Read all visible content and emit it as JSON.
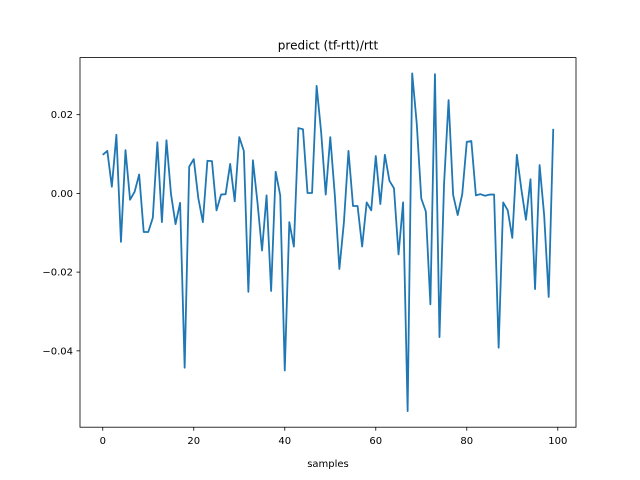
{
  "chart_data": {
    "type": "line",
    "title": "predict (tf-rtt)/rtt",
    "xlabel": "samples",
    "ylabel": "",
    "xlim": [
      -5,
      104
    ],
    "ylim": [
      -0.0594,
      0.0345
    ],
    "xticks": [
      0,
      20,
      40,
      60,
      80,
      100
    ],
    "yticks": [
      -0.04,
      -0.02,
      0.0,
      0.02
    ],
    "ytick_labels": [
      "−0.04",
      "−0.02",
      "0.00",
      "0.02"
    ],
    "grid": false,
    "color": "#1f77b4",
    "series": [
      {
        "x": [
          0,
          1,
          2,
          3,
          4,
          5,
          6,
          7,
          8,
          9,
          10,
          11,
          12,
          13,
          14,
          15,
          16,
          17,
          18,
          19,
          20,
          21,
          22,
          23,
          24,
          25,
          26,
          27,
          28,
          29,
          30,
          31,
          32,
          33,
          34,
          35,
          36,
          37,
          38,
          39,
          40,
          41,
          42,
          43,
          44,
          45,
          46,
          47,
          48,
          49,
          50,
          51,
          52,
          53,
          54,
          55,
          56,
          57,
          58,
          59,
          60,
          61,
          62,
          63,
          64,
          65,
          66,
          67,
          68,
          69,
          70,
          71,
          72,
          73,
          74,
          75,
          76,
          77,
          78,
          79,
          80,
          81,
          82,
          83,
          84,
          85,
          86,
          87,
          88,
          89,
          90,
          91,
          92,
          93,
          94,
          95,
          96,
          97,
          98,
          99
        ],
        "y": [
          0.0098,
          0.0108,
          0.0017,
          0.0149,
          -0.0123,
          0.011,
          -0.0016,
          0.0004,
          0.0048,
          -0.0098,
          -0.0098,
          -0.0062,
          0.013,
          -0.0073,
          0.0135,
          -0.0002,
          -0.0078,
          -0.0024,
          -0.0443,
          0.0068,
          0.0087,
          -0.0012,
          -0.0073,
          0.0083,
          0.0082,
          -0.0043,
          -0.0003,
          -0.0002,
          0.0075,
          -0.002,
          0.0143,
          0.0108,
          -0.025,
          0.0084,
          -0.0023,
          -0.0145,
          -0.0005,
          -0.0248,
          0.0055,
          -0.0005,
          -0.045,
          -0.0073,
          -0.0135,
          0.0166,
          0.0163,
          0.0001,
          0.0001,
          0.0273,
          0.0155,
          -0.0003,
          0.0143,
          -0.0005,
          -0.0192,
          -0.0073,
          0.0108,
          -0.0032,
          -0.0032,
          -0.0135,
          -0.0023,
          -0.0043,
          0.0095,
          -0.0027,
          0.0098,
          0.0032,
          0.0013,
          -0.0155,
          -0.0023,
          -0.0553,
          0.0305,
          0.0178,
          -0.0013,
          -0.0046,
          -0.0282,
          0.0303,
          -0.0365,
          0.0023,
          0.0237,
          -0.0004,
          -0.0055,
          -0.0002,
          0.0131,
          0.0133,
          -0.0005,
          -0.0002,
          -0.0006,
          -0.0003,
          -0.0003,
          -0.0392,
          -0.0023,
          -0.0043,
          -0.0113,
          0.0098,
          0.001,
          -0.0067,
          0.0036,
          -0.0243,
          0.0072,
          -0.0055,
          -0.0263,
          0.0164
        ]
      }
    ]
  }
}
